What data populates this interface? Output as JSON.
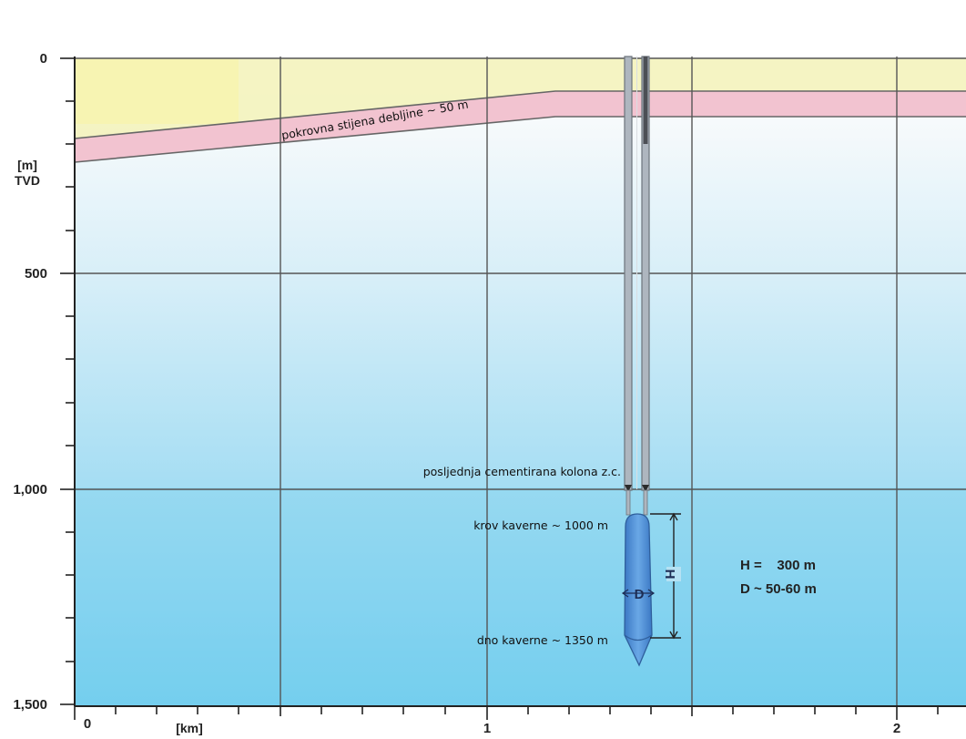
{
  "y_axis": {
    "unit_label": "[m]",
    "unit_label_2": "TVD",
    "ticks": [
      "0",
      "500",
      "1,000",
      "1,500"
    ]
  },
  "x_axis": {
    "unit_label": "[km]",
    "ticks": [
      "0",
      "1",
      "2"
    ]
  },
  "annotations": {
    "cover_rock": "pokrovna stijena debljine ~ 50 m",
    "last_cemented_casing": "posljednja cementirana kolona z.c.",
    "cavern_roof": "krov kaverne ~ 1000 m",
    "cavern_floor": "dno kaverne ~ 1350 m"
  },
  "cavern": {
    "height_symbol": "H",
    "diameter_symbol": "D"
  },
  "parameters": {
    "height": "H =    300 m",
    "diameter": "D ~ 50-60 m"
  },
  "colors": {
    "sky_top": "#ffffff",
    "deep_blue": "#6fcdef",
    "cover_yellow": "#f3f2b8",
    "cover_pink": "#f2c3d0",
    "casing": "#9aa3ad",
    "cavern": "#4d8fd6",
    "grid": "#555555"
  }
}
